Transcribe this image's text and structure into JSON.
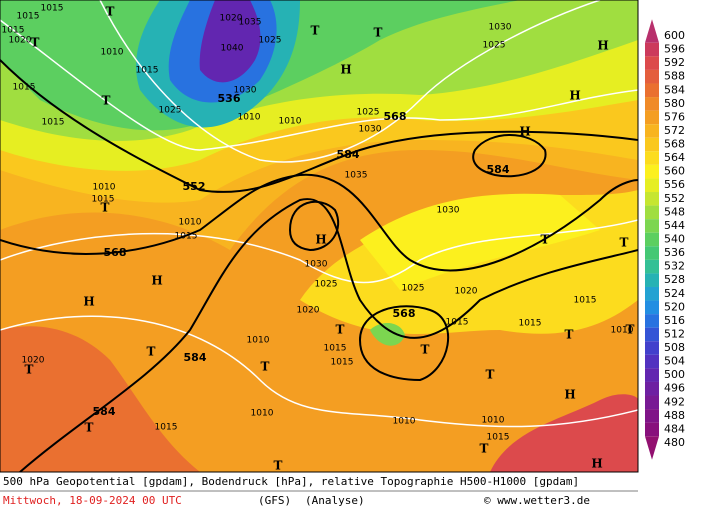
{
  "map": {
    "geopotential_labels": [
      552,
      568,
      584,
      584,
      568,
      568,
      584,
      584,
      536
    ],
    "pressure_labels": [
      "1015",
      "1015",
      "1015",
      "1010",
      "1015",
      "1025",
      "1020",
      "1035",
      "1040",
      "1025",
      "1030",
      "1010",
      "1010",
      "1030",
      "1025",
      "1035",
      "1030",
      "1010",
      "1015",
      "1010",
      "1015",
      "1030",
      "1025",
      "1020",
      "1025",
      "1020",
      "1015",
      "1010",
      "1015",
      "1015",
      "1010",
      "1015",
      "1010",
      "1010",
      "1015",
      "1015",
      "1010",
      "1020",
      "1015",
      "1015",
      "1020",
      "1030",
      "1025",
      "1015"
    ],
    "centers": [
      "H",
      "H",
      "H",
      "T",
      "T",
      "T",
      "T",
      "T",
      "H",
      "H",
      "H",
      "H",
      "T",
      "T",
      "T",
      "T",
      "T",
      "T",
      "T",
      "T",
      "T",
      "T",
      "T",
      "H",
      "H",
      "T",
      "T",
      "T"
    ]
  },
  "colorbar": {
    "levels": [
      600,
      596,
      592,
      588,
      584,
      580,
      576,
      572,
      568,
      564,
      560,
      556,
      552,
      548,
      544,
      540,
      536,
      532,
      528,
      524,
      520,
      516,
      512,
      508,
      504,
      500,
      496,
      492,
      488,
      484,
      480
    ],
    "colors": [
      "#b8306c",
      "#cc3a5c",
      "#dc4a4c",
      "#e45e3c",
      "#ea7030",
      "#f08a28",
      "#f49e22",
      "#f8b420",
      "#fac81e",
      "#fcdc1e",
      "#fcf01e",
      "#e6ee22",
      "#c6e630",
      "#a0de40",
      "#7cd650",
      "#5ccf60",
      "#44c874",
      "#34c096",
      "#26b2b4",
      "#22a2d2",
      "#228ee2",
      "#2872e0",
      "#3454d6",
      "#4240cc",
      "#5232c0",
      "#6226b0",
      "#6e20a2",
      "#781a94",
      "#801488",
      "#88107c",
      "#921070"
    ]
  },
  "footer": {
    "description": "500 hPa Geopotential [gpdam], Bodendruck [hPa], relative Topographie H500-H1000 [gpdam]",
    "date": "Mittwoch, 18-09-2024  00 UTC",
    "model": "(GFS)",
    "run": "(Analyse)",
    "copyright": "© www.wetter3.de"
  }
}
